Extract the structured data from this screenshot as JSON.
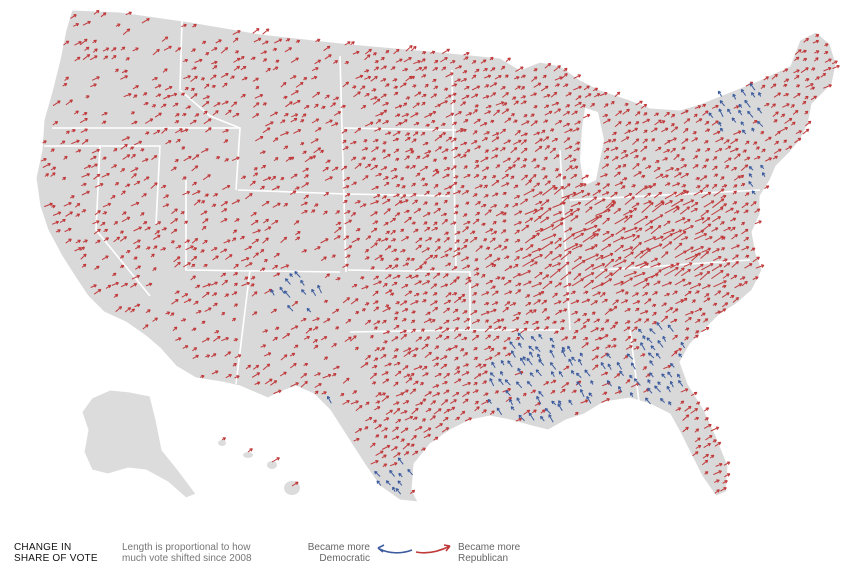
{
  "map": {
    "region": "United States counties",
    "arrow_colors": {
      "democratic": "#3d5c9e",
      "republican": "#c0393b"
    },
    "land_color": "#d9d9d9",
    "border_color": "#ffffff"
  },
  "legend": {
    "title_line1": "CHANGE IN",
    "title_line2": "SHARE OF VOTE",
    "note_line1": "Length is proportional to how",
    "note_line2": "much vote shifted since 2008",
    "dem_line1": "Became more",
    "dem_line2": "Democratic",
    "rep_line1": "Became more",
    "rep_line2": "Republican"
  }
}
